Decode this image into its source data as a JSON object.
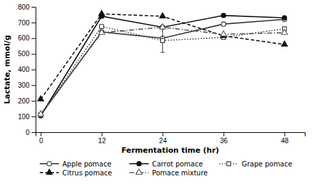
{
  "chart_data": {
    "type": "line",
    "x": [
      0,
      12,
      24,
      36,
      48
    ],
    "xlabel": "Fermentation time (hr)",
    "ylabel": "Lactate, mmol/g",
    "xlim": [
      -1,
      52
    ],
    "ylim": [
      0,
      800
    ],
    "xticks": [
      0,
      12,
      24,
      36,
      48
    ],
    "yticks": [
      0,
      100,
      200,
      300,
      400,
      500,
      600,
      700,
      800
    ],
    "grid": false,
    "legend": "bottom",
    "series": [
      {
        "name": "Apple pomace",
        "color": "#333333",
        "marker": "circle-open",
        "line_style": "solid",
        "values": [
          110,
          640,
          600,
          690,
          720
        ]
      },
      {
        "name": "Carrot pomace",
        "color": "#111111",
        "marker": "circle",
        "line_style": "solid",
        "values": [
          105,
          740,
          670,
          745,
          730
        ]
      },
      {
        "name": "Grape pomace",
        "color": "#333333",
        "marker": "square-open",
        "line_style": "dotted",
        "values": [
          110,
          675,
          585,
          605,
          660
        ],
        "errors": [
          0,
          0,
          75,
          0,
          0
        ]
      },
      {
        "name": "Citrus pomace",
        "color": "#111111",
        "marker": "triangle",
        "line_style": "dashed",
        "values": [
          210,
          755,
          740,
          615,
          560
        ]
      },
      {
        "name": "Pomace mixture",
        "color": "#555555",
        "marker": "triangle-open",
        "line_style": "dashdot",
        "values": [
          115,
          635,
          670,
          625,
          635
        ]
      }
    ]
  }
}
